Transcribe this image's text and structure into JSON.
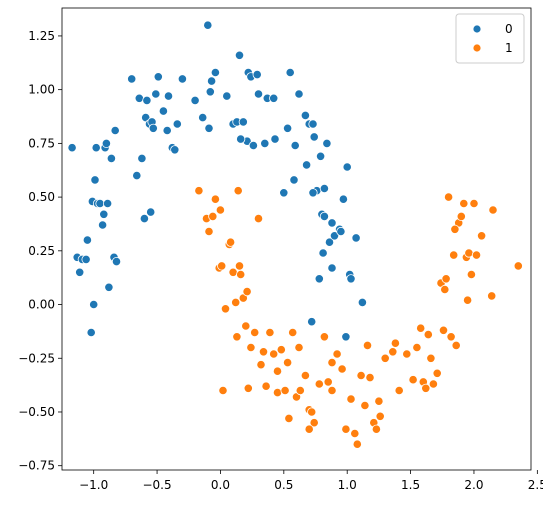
{
  "chart_data": {
    "type": "scatter",
    "xlim": [
      -1.25,
      2.45
    ],
    "ylim": [
      -0.77,
      1.38
    ],
    "x_ticks": [
      -1.0,
      -0.5,
      0.0,
      0.5,
      1.0,
      1.5,
      2.0,
      2.5
    ],
    "x_tick_labels": [
      "−1.0",
      "−0.5",
      "0.0",
      "0.5",
      "1.0",
      "1.5",
      "2.0",
      "2.5"
    ],
    "y_ticks": [
      -0.75,
      -0.5,
      -0.25,
      0.0,
      0.25,
      0.5,
      0.75,
      1.0,
      1.25
    ],
    "y_tick_labels": [
      "−0.75",
      "−0.50",
      "−0.25",
      "0.00",
      "0.25",
      "0.50",
      "0.75",
      "1.00",
      "1.25"
    ],
    "grid": false,
    "legend": {
      "placement": "top-right",
      "entries": [
        "0",
        "1"
      ]
    },
    "series": [
      {
        "name": "0",
        "color": "#1f77b4",
        "points": [
          [
            -1.17,
            0.73
          ],
          [
            -1.13,
            0.22
          ],
          [
            -1.11,
            0.15
          ],
          [
            -1.09,
            0.21
          ],
          [
            -1.06,
            0.21
          ],
          [
            -1.05,
            0.3
          ],
          [
            -1.02,
            -0.13
          ],
          [
            -1.01,
            0.48
          ],
          [
            -1.0,
            0.0
          ],
          [
            -0.99,
            0.58
          ],
          [
            -0.98,
            0.73
          ],
          [
            -0.97,
            0.47
          ],
          [
            -0.95,
            0.47
          ],
          [
            -0.93,
            0.37
          ],
          [
            -0.92,
            0.42
          ],
          [
            -0.91,
            0.73
          ],
          [
            -0.9,
            0.75
          ],
          [
            -0.89,
            0.47
          ],
          [
            -0.88,
            0.08
          ],
          [
            -0.86,
            0.68
          ],
          [
            -0.84,
            0.22
          ],
          [
            -0.83,
            0.81
          ],
          [
            -0.82,
            0.2
          ],
          [
            -0.7,
            1.05
          ],
          [
            -0.66,
            0.6
          ],
          [
            -0.64,
            0.96
          ],
          [
            -0.62,
            0.68
          ],
          [
            -0.6,
            0.4
          ],
          [
            -0.59,
            0.87
          ],
          [
            -0.58,
            0.95
          ],
          [
            -0.56,
            0.84
          ],
          [
            -0.55,
            0.43
          ],
          [
            -0.54,
            0.85
          ],
          [
            -0.53,
            0.82
          ],
          [
            -0.51,
            0.98
          ],
          [
            -0.49,
            1.06
          ],
          [
            -0.45,
            0.9
          ],
          [
            -0.42,
            0.81
          ],
          [
            -0.41,
            0.97
          ],
          [
            -0.38,
            0.73
          ],
          [
            -0.36,
            0.72
          ],
          [
            -0.34,
            0.84
          ],
          [
            -0.3,
            1.05
          ],
          [
            -0.14,
            0.87
          ],
          [
            -0.1,
            1.3
          ],
          [
            -0.09,
            0.82
          ],
          [
            -0.08,
            0.99
          ],
          [
            -0.07,
            1.04
          ],
          [
            -0.04,
            1.08
          ],
          [
            0.1,
            0.84
          ],
          [
            0.13,
            0.85
          ],
          [
            0.15,
            1.16
          ],
          [
            0.18,
            0.85
          ],
          [
            0.21,
            0.76
          ],
          [
            0.22,
            1.08
          ],
          [
            0.24,
            1.06
          ],
          [
            0.26,
            0.74
          ],
          [
            0.29,
            1.07
          ],
          [
            0.3,
            0.98
          ],
          [
            0.35,
            0.75
          ],
          [
            0.37,
            0.96
          ],
          [
            0.42,
            0.96
          ],
          [
            0.43,
            0.77
          ],
          [
            0.53,
            0.82
          ],
          [
            0.55,
            1.08
          ],
          [
            0.58,
            0.58
          ],
          [
            0.62,
            0.98
          ],
          [
            0.67,
            0.88
          ],
          [
            0.7,
            0.84
          ],
          [
            0.73,
            0.84
          ],
          [
            0.74,
            0.78
          ],
          [
            0.76,
            0.53
          ],
          [
            0.78,
            0.12
          ],
          [
            0.79,
            0.69
          ],
          [
            0.8,
            0.42
          ],
          [
            0.81,
            0.24
          ],
          [
            0.82,
            0.41
          ],
          [
            0.84,
            0.75
          ],
          [
            0.86,
            0.29
          ],
          [
            0.88,
            0.38
          ],
          [
            0.9,
            0.32
          ],
          [
            0.94,
            0.35
          ],
          [
            0.95,
            0.34
          ],
          [
            0.97,
            0.49
          ],
          [
            0.99,
            -0.15
          ],
          [
            1.0,
            0.64
          ],
          [
            1.02,
            0.14
          ],
          [
            1.03,
            0.12
          ],
          [
            1.07,
            0.31
          ],
          [
            1.12,
            0.01
          ],
          [
            0.68,
            0.65
          ],
          [
            0.59,
            0.74
          ],
          [
            0.82,
            0.54
          ],
          [
            0.73,
            0.52
          ],
          [
            0.88,
            0.17
          ],
          [
            0.5,
            0.52
          ],
          [
            0.72,
            -0.08
          ],
          [
            0.16,
            0.77
          ],
          [
            0.05,
            0.97
          ],
          [
            -0.2,
            0.95
          ]
        ]
      },
      {
        "name": "1",
        "color": "#ff7f0e",
        "points": [
          [
            -0.17,
            0.53
          ],
          [
            -0.11,
            0.4
          ],
          [
            -0.09,
            0.34
          ],
          [
            -0.06,
            0.41
          ],
          [
            -0.04,
            0.49
          ],
          [
            -0.01,
            0.17
          ],
          [
            0.0,
            0.44
          ],
          [
            0.01,
            0.18
          ],
          [
            0.02,
            -0.4
          ],
          [
            0.04,
            -0.02
          ],
          [
            0.07,
            0.28
          ],
          [
            0.08,
            0.29
          ],
          [
            0.1,
            0.15
          ],
          [
            0.12,
            0.01
          ],
          [
            0.13,
            -0.15
          ],
          [
            0.14,
            0.53
          ],
          [
            0.15,
            0.18
          ],
          [
            0.16,
            0.14
          ],
          [
            0.18,
            0.03
          ],
          [
            0.2,
            -0.1
          ],
          [
            0.21,
            0.06
          ],
          [
            0.22,
            -0.39
          ],
          [
            0.24,
            -0.2
          ],
          [
            0.27,
            -0.13
          ],
          [
            0.3,
            0.4
          ],
          [
            0.32,
            -0.28
          ],
          [
            0.34,
            -0.22
          ],
          [
            0.36,
            -0.38
          ],
          [
            0.39,
            -0.13
          ],
          [
            0.42,
            -0.23
          ],
          [
            0.45,
            -0.41
          ],
          [
            0.48,
            -0.21
          ],
          [
            0.51,
            -0.4
          ],
          [
            0.53,
            -0.27
          ],
          [
            0.54,
            -0.53
          ],
          [
            0.57,
            -0.13
          ],
          [
            0.6,
            -0.43
          ],
          [
            0.63,
            -0.4
          ],
          [
            0.67,
            -0.33
          ],
          [
            0.7,
            -0.49
          ],
          [
            0.72,
            -0.5
          ],
          [
            0.74,
            -0.55
          ],
          [
            0.78,
            -0.37
          ],
          [
            0.82,
            -0.15
          ],
          [
            0.85,
            -0.36
          ],
          [
            0.88,
            -0.4
          ],
          [
            0.92,
            -0.23
          ],
          [
            0.96,
            -0.3
          ],
          [
            0.99,
            -0.58
          ],
          [
            1.03,
            -0.44
          ],
          [
            1.06,
            -0.6
          ],
          [
            1.08,
            -0.65
          ],
          [
            1.11,
            -0.33
          ],
          [
            1.14,
            -0.47
          ],
          [
            1.16,
            -0.19
          ],
          [
            1.18,
            -0.34
          ],
          [
            1.21,
            -0.55
          ],
          [
            1.23,
            -0.58
          ],
          [
            1.26,
            -0.52
          ],
          [
            1.3,
            -0.25
          ],
          [
            1.36,
            -0.22
          ],
          [
            1.38,
            -0.18
          ],
          [
            1.41,
            -0.4
          ],
          [
            1.47,
            -0.23
          ],
          [
            1.52,
            -0.35
          ],
          [
            1.55,
            -0.2
          ],
          [
            1.58,
            -0.11
          ],
          [
            1.6,
            -0.36
          ],
          [
            1.62,
            -0.39
          ],
          [
            1.64,
            -0.14
          ],
          [
            1.66,
            -0.25
          ],
          [
            1.68,
            -0.37
          ],
          [
            1.71,
            -0.32
          ],
          [
            1.74,
            0.1
          ],
          [
            1.76,
            -0.12
          ],
          [
            1.78,
            0.12
          ],
          [
            1.8,
            0.5
          ],
          [
            1.82,
            -0.15
          ],
          [
            1.84,
            0.23
          ],
          [
            1.86,
            -0.19
          ],
          [
            1.88,
            0.38
          ],
          [
            1.9,
            0.41
          ],
          [
            1.92,
            0.47
          ],
          [
            1.94,
            0.22
          ],
          [
            1.95,
            0.02
          ],
          [
            1.96,
            0.24
          ],
          [
            1.98,
            0.14
          ],
          [
            2.0,
            0.47
          ],
          [
            2.02,
            0.23
          ],
          [
            2.06,
            0.32
          ],
          [
            2.15,
            0.44
          ],
          [
            2.14,
            0.04
          ],
          [
            2.35,
            0.18
          ],
          [
            1.85,
            0.35
          ],
          [
            1.77,
            0.07
          ],
          [
            0.62,
            -0.2
          ],
          [
            0.88,
            -0.27
          ],
          [
            1.25,
            -0.45
          ],
          [
            0.45,
            -0.31
          ],
          [
            0.7,
            -0.58
          ]
        ]
      }
    ]
  }
}
